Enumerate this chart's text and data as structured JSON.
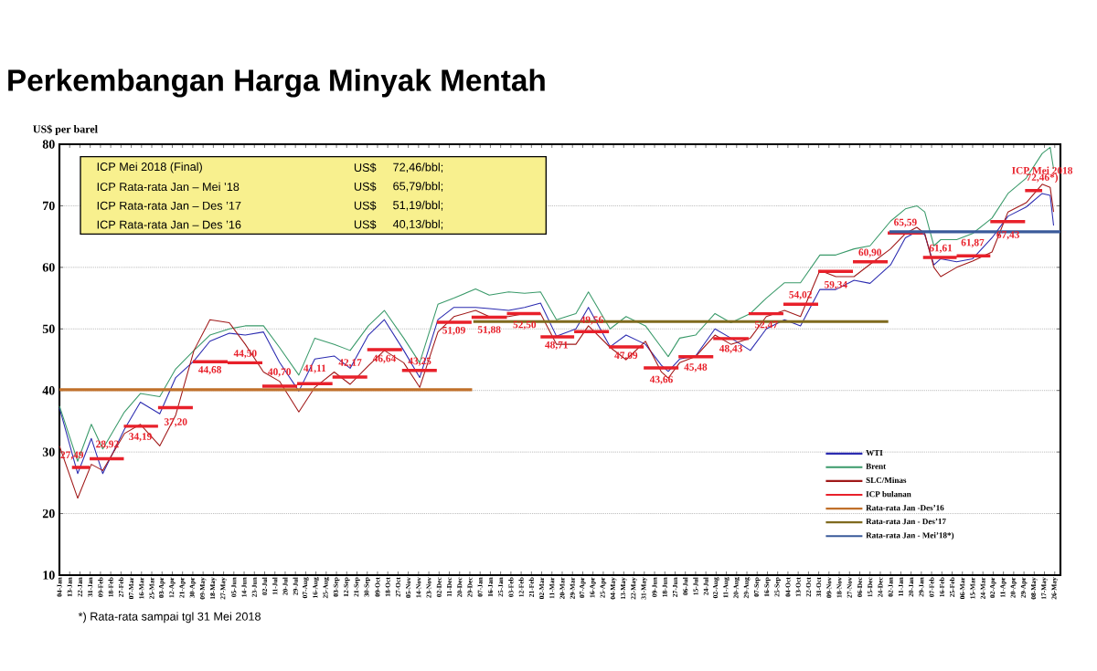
{
  "chart_data": {
    "type": "line",
    "title": "Perkembangan Harga Minyak Mentah",
    "ylabel": "US$ per barel",
    "x": [
      "2016-01-04",
      "2016-01-20",
      "2016-02-01",
      "2016-02-11",
      "2016-03-01",
      "2016-03-15",
      "2016-04-01",
      "2016-04-15",
      "2016-05-01",
      "2016-05-15",
      "2016-06-01",
      "2016-06-15",
      "2016-07-01",
      "2016-07-15",
      "2016-08-01",
      "2016-08-15",
      "2016-09-01",
      "2016-09-15",
      "2016-10-01",
      "2016-10-15",
      "2016-11-01",
      "2016-11-15",
      "2016-12-01",
      "2016-12-15",
      "2017-01-03",
      "2017-01-15",
      "2017-02-01",
      "2017-02-15",
      "2017-03-01",
      "2017-03-15",
      "2017-04-01",
      "2017-04-12",
      "2017-05-01",
      "2017-05-15",
      "2017-06-01",
      "2017-06-15",
      "2017-06-21",
      "2017-07-01",
      "2017-07-15",
      "2017-08-01",
      "2017-08-15",
      "2017-09-01",
      "2017-09-15",
      "2017-10-01",
      "2017-10-15",
      "2017-11-01",
      "2017-11-15",
      "2017-12-01",
      "2017-12-15",
      "2018-01-02",
      "2018-01-15",
      "2018-01-25",
      "2018-02-01",
      "2018-02-09",
      "2018-02-15",
      "2018-03-01",
      "2018-03-15",
      "2018-04-01",
      "2018-04-15",
      "2018-05-01",
      "2018-05-15",
      "2018-05-22",
      "2018-05-25"
    ],
    "series": [
      {
        "name": "WTI",
        "color": "#2b2bb0",
        "values": [
          37.2,
          26.5,
          32.2,
          26.5,
          33.7,
          38.1,
          36.2,
          42.1,
          44.8,
          48.0,
          49.3,
          49.0,
          49.5,
          44.6,
          39.9,
          45.1,
          45.6,
          43.6,
          49.0,
          51.5,
          46.5,
          42.1,
          51.5,
          53.5,
          53.5,
          53.3,
          53.0,
          53.5,
          54.2,
          48.8,
          50.0,
          53.5,
          47.1,
          49.0,
          47.5,
          44.1,
          43.1,
          45.1,
          45.6,
          50.0,
          48.5,
          46.5,
          50.0,
          51.5,
          50.5,
          56.4,
          56.4,
          57.9,
          57.4,
          60.4,
          64.8,
          65.8,
          65.3,
          60.4,
          61.4,
          60.9,
          61.4,
          64.8,
          68.3,
          69.8,
          72.0,
          71.7,
          66.8
        ]
      },
      {
        "name": "Brent",
        "color": "#3a9a6a",
        "values": [
          37.5,
          28.5,
          34.5,
          30.5,
          36.5,
          39.5,
          39.0,
          43.5,
          46.5,
          49.0,
          50.0,
          50.5,
          50.5,
          47.0,
          42.5,
          48.5,
          47.5,
          46.5,
          50.5,
          53.0,
          48.5,
          44.5,
          54.0,
          55.0,
          56.5,
          55.5,
          56.0,
          55.8,
          56.0,
          51.5,
          52.5,
          56.0,
          50.0,
          52.0,
          50.5,
          47.0,
          45.5,
          48.5,
          49.0,
          52.5,
          51.0,
          52.5,
          55.0,
          57.5,
          57.5,
          62.0,
          62.0,
          63.0,
          63.5,
          67.5,
          69.5,
          70.0,
          69.0,
          63.5,
          64.5,
          64.5,
          65.5,
          68.0,
          72.0,
          74.5,
          78.5,
          79.5,
          76.0
        ]
      },
      {
        "name": "SLC/Minas",
        "color": "#a01818",
        "values": [
          31.0,
          22.5,
          28.0,
          27.0,
          33.0,
          34.5,
          31.0,
          36.0,
          46.5,
          51.5,
          51.0,
          47.5,
          43.0,
          41.5,
          36.5,
          40.5,
          43.0,
          41.0,
          44.0,
          46.5,
          44.5,
          40.5,
          49.5,
          52.0,
          53.0,
          52.0,
          52.0,
          52.5,
          52.5,
          47.5,
          47.5,
          50.5,
          47.0,
          45.0,
          48.0,
          43.0,
          42.0,
          44.5,
          45.5,
          49.0,
          47.5,
          48.5,
          52.0,
          53.0,
          52.0,
          59.5,
          58.5,
          58.5,
          60.5,
          63.0,
          65.5,
          66.5,
          65.5,
          60.0,
          58.5,
          60.0,
          61.0,
          62.5,
          69.0,
          70.5,
          73.5,
          73.0,
          69.0
        ]
      },
      {
        "name": "ICP bulanan",
        "type": "step",
        "color": "#e8202a",
        "x": [
          "2016-01-15",
          "2016-02-15",
          "2016-03-15",
          "2016-04-15",
          "2016-05-15",
          "2016-06-15",
          "2016-07-15",
          "2016-08-15",
          "2016-09-15",
          "2016-10-15",
          "2016-11-15",
          "2016-12-15",
          "2017-01-15",
          "2017-02-15",
          "2017-03-15",
          "2017-04-15",
          "2017-05-15",
          "2017-06-15",
          "2017-07-15",
          "2017-08-15",
          "2017-09-15",
          "2017-10-15",
          "2017-11-15",
          "2017-12-15",
          "2018-01-15",
          "2018-02-15",
          "2018-03-15",
          "2018-04-15",
          "2018-05-15"
        ],
        "values": [
          27.49,
          28.92,
          34.19,
          37.2,
          44.68,
          44.5,
          40.7,
          41.11,
          42.17,
          46.64,
          43.25,
          51.09,
          51.88,
          52.5,
          48.71,
          49.56,
          47.09,
          43.66,
          45.48,
          48.43,
          52.47,
          54.02,
          59.34,
          60.9,
          65.59,
          61.61,
          61.87,
          67.43,
          72.46
        ],
        "value_labels": [
          "27,49",
          "28,92",
          "34,19",
          "37,20",
          "44,68",
          "44,50",
          "40,70",
          "41,11",
          "42,17",
          "46,64",
          "43,25",
          "51,09",
          "51,88",
          "52,50",
          "48,71",
          "49,56",
          "47,09",
          "43,66",
          "45,48",
          "48,43",
          "52,47",
          "54,02",
          "59,34",
          "60,90",
          "65,59",
          "61,61",
          "61,87",
          "67,43",
          "72,46*)"
        ]
      },
      {
        "name": "Rata-rata Jan -Des’16",
        "color": "#c0702a",
        "x": [
          "2016-01-04",
          "2016-12-31"
        ],
        "values": [
          40.13,
          40.13
        ]
      },
      {
        "name": "Rata-rata Jan - Des’17",
        "color": "#7f6a1e",
        "x": [
          "2017-01-01",
          "2017-12-31"
        ],
        "values": [
          51.19,
          51.19
        ]
      },
      {
        "name": "Rata-rata Jan - Mei’18*)",
        "color": "#3a5a9a",
        "x": [
          "2018-01-01",
          "2018-05-31"
        ],
        "values": [
          65.79,
          65.79
        ]
      }
    ],
    "xlim": [
      "2016-01-04",
      "2018-05-31"
    ],
    "xticks": [
      {
        "value": "2016-01-04",
        "label": "04-Jan"
      },
      {
        "value": "2016-01-13",
        "label": "13-Jan"
      },
      {
        "value": "2016-01-22",
        "label": "22-Jan"
      },
      {
        "value": "2016-01-31",
        "label": "31-Jan"
      },
      {
        "value": "2016-02-09",
        "label": "09-Feb"
      },
      {
        "value": "2016-02-18",
        "label": "18-Feb"
      },
      {
        "value": "2016-02-27",
        "label": "27-Feb"
      },
      {
        "value": "2016-03-07",
        "label": "07-Mar"
      },
      {
        "value": "2016-03-16",
        "label": "16-Mar"
      },
      {
        "value": "2016-03-25",
        "label": "25-Mar"
      },
      {
        "value": "2016-04-03",
        "label": "03-Apr"
      },
      {
        "value": "2016-04-12",
        "label": "12-Apr"
      },
      {
        "value": "2016-04-21",
        "label": "21-Apr"
      },
      {
        "value": "2016-04-30",
        "label": "30-Apr"
      },
      {
        "value": "2016-05-09",
        "label": "09-May"
      },
      {
        "value": "2016-05-18",
        "label": "18-May"
      },
      {
        "value": "2016-05-27",
        "label": "27-May"
      },
      {
        "value": "2016-06-05",
        "label": "05-Jun"
      },
      {
        "value": "2016-06-14",
        "label": "14-Jun"
      },
      {
        "value": "2016-06-23",
        "label": "23-Jun"
      },
      {
        "value": "2016-07-02",
        "label": "02-Jul"
      },
      {
        "value": "2016-07-11",
        "label": "11-Jul"
      },
      {
        "value": "2016-07-20",
        "label": "20-Jul"
      },
      {
        "value": "2016-07-29",
        "label": "29-Jul"
      },
      {
        "value": "2016-08-07",
        "label": "07-Aug"
      },
      {
        "value": "2016-08-16",
        "label": "16-Aug"
      },
      {
        "value": "2016-08-25",
        "label": "25-Aug"
      },
      {
        "value": "2016-09-03",
        "label": "03-Sep"
      },
      {
        "value": "2016-09-12",
        "label": "12-Sep"
      },
      {
        "value": "2016-09-21",
        "label": "21-Sep"
      },
      {
        "value": "2016-09-30",
        "label": "30-Sep"
      },
      {
        "value": "2016-10-09",
        "label": "09-Oct"
      },
      {
        "value": "2016-10-18",
        "label": "18-Oct"
      },
      {
        "value": "2016-10-27",
        "label": "27-Oct"
      },
      {
        "value": "2016-11-05",
        "label": "05-Nov"
      },
      {
        "value": "2016-11-14",
        "label": "14-Nov"
      },
      {
        "value": "2016-11-23",
        "label": "23-Nov"
      },
      {
        "value": "2016-12-02",
        "label": "02-Dec"
      },
      {
        "value": "2016-12-11",
        "label": "11-Dec"
      },
      {
        "value": "2016-12-20",
        "label": "20-Dec"
      },
      {
        "value": "2016-12-29",
        "label": "29-Dec"
      },
      {
        "value": "2017-01-07",
        "label": "07-Jan"
      },
      {
        "value": "2017-01-16",
        "label": "16-Jan"
      },
      {
        "value": "2017-01-25",
        "label": "25-Jan"
      },
      {
        "value": "2017-02-03",
        "label": "03-Feb"
      },
      {
        "value": "2017-02-12",
        "label": "12-Feb"
      },
      {
        "value": "2017-02-21",
        "label": "21-Feb"
      },
      {
        "value": "2017-03-02",
        "label": "02-Mar"
      },
      {
        "value": "2017-03-11",
        "label": "11-Mar"
      },
      {
        "value": "2017-03-20",
        "label": "20-Mar"
      },
      {
        "value": "2017-03-29",
        "label": "29-Mar"
      },
      {
        "value": "2017-04-07",
        "label": "07-Apr"
      },
      {
        "value": "2017-04-16",
        "label": "16-Apr"
      },
      {
        "value": "2017-04-25",
        "label": "25-Apr"
      },
      {
        "value": "2017-05-04",
        "label": "04-May"
      },
      {
        "value": "2017-05-13",
        "label": "13-May"
      },
      {
        "value": "2017-05-22",
        "label": "22-May"
      },
      {
        "value": "2017-05-31",
        "label": "31-May"
      },
      {
        "value": "2017-06-09",
        "label": "09-Jun"
      },
      {
        "value": "2017-06-18",
        "label": "18-Jun"
      },
      {
        "value": "2017-06-27",
        "label": "27-Jun"
      },
      {
        "value": "2017-07-06",
        "label": "06-Jul"
      },
      {
        "value": "2017-07-15",
        "label": "15-Jul"
      },
      {
        "value": "2017-07-24",
        "label": "24-Jul"
      },
      {
        "value": "2017-08-02",
        "label": "02-Aug"
      },
      {
        "value": "2017-08-11",
        "label": "11-Aug"
      },
      {
        "value": "2017-08-20",
        "label": "20-Aug"
      },
      {
        "value": "2017-08-29",
        "label": "29-Aug"
      },
      {
        "value": "2017-09-07",
        "label": "07-Sep"
      },
      {
        "value": "2017-09-16",
        "label": "16-Sep"
      },
      {
        "value": "2017-09-25",
        "label": "25-Sep"
      },
      {
        "value": "2017-10-04",
        "label": "04-Oct"
      },
      {
        "value": "2017-10-13",
        "label": "13-Oct"
      },
      {
        "value": "2017-10-22",
        "label": "22-Oct"
      },
      {
        "value": "2017-10-31",
        "label": "31-Oct"
      },
      {
        "value": "2017-11-09",
        "label": "09-Nov"
      },
      {
        "value": "2017-11-18",
        "label": "18-Nov"
      },
      {
        "value": "2017-11-27",
        "label": "27-Nov"
      },
      {
        "value": "2017-12-06",
        "label": "06-Dec"
      },
      {
        "value": "2017-12-15",
        "label": "15-Dec"
      },
      {
        "value": "2017-12-24",
        "label": "24-Dec"
      },
      {
        "value": "2018-01-02",
        "label": "02-Jan"
      },
      {
        "value": "2018-01-11",
        "label": "11-Jan"
      },
      {
        "value": "2018-01-20",
        "label": "20-Jan"
      },
      {
        "value": "2018-01-29",
        "label": "29-Jan"
      },
      {
        "value": "2018-02-07",
        "label": "07-Feb"
      },
      {
        "value": "2018-02-16",
        "label": "16-Feb"
      },
      {
        "value": "2018-02-25",
        "label": "25-Feb"
      },
      {
        "value": "2018-03-06",
        "label": "06-Mar"
      },
      {
        "value": "2018-03-15",
        "label": "15-Mar"
      },
      {
        "value": "2018-03-24",
        "label": "24-Mar"
      },
      {
        "value": "2018-04-02",
        "label": "02-Apr"
      },
      {
        "value": "2018-04-11",
        "label": "11-Apr"
      },
      {
        "value": "2018-04-20",
        "label": "20-Apr"
      },
      {
        "value": "2018-04-29",
        "label": "29-Apr"
      },
      {
        "value": "2018-05-08",
        "label": "08-May"
      },
      {
        "value": "2018-05-17",
        "label": "17-May"
      },
      {
        "value": "2018-05-26",
        "label": "26-May"
      }
    ],
    "ylim": [
      10,
      80
    ],
    "yticks": [
      10,
      20,
      30,
      40,
      50,
      60,
      70,
      80
    ],
    "grid": "y",
    "legend": "bottom right",
    "annotations": [
      "ICP Mei 2018 (Final)",
      "US$",
      "72,46/bbl;",
      "ICP Rata-rata  Jan – Mei ’18",
      "US$",
      "65,79/bbl;",
      "ICP Rata-rata  Jan – Des ’17",
      "US$",
      "51,19/bbl;",
      "ICP Rata-rata  Jan – Des ’16",
      "US$",
      "40,13/bbl;",
      "*) Rata-rata  sampai  tgl 31 Mei 2018",
      {
        "text": "ICP Mei 2018",
        "x": "2018-05-15",
        "y": 72.46
      }
    ]
  }
}
